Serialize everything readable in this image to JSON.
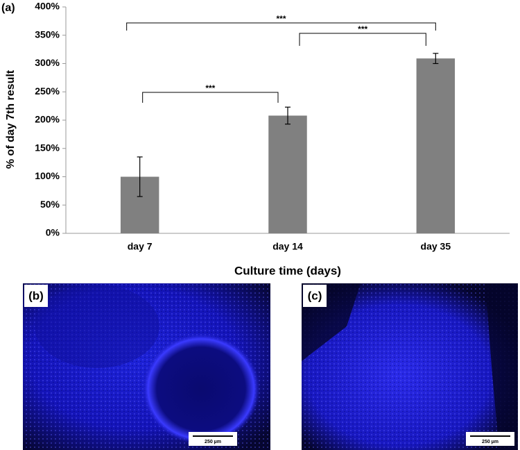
{
  "chart_data": {
    "type": "bar",
    "panel_label": "(a)",
    "categories": [
      "day 7",
      "day 14",
      "day 35"
    ],
    "values": [
      100,
      208,
      309
    ],
    "errors": [
      35,
      15,
      9
    ],
    "color": "#808080",
    "ylim": [
      0,
      400
    ],
    "yticks": [
      {
        "value": 0,
        "label": "0%"
      },
      {
        "value": 50,
        "label": "50%"
      },
      {
        "value": 100,
        "label": "100%"
      },
      {
        "value": 150,
        "label": "150%"
      },
      {
        "value": 200,
        "label": "200%"
      },
      {
        "value": 250,
        "label": "250%"
      },
      {
        "value": 300,
        "label": "300%"
      },
      {
        "value": 350,
        "label": "350%"
      },
      {
        "value": 400,
        "label": "400%"
      }
    ],
    "ylabel": "% of day 7th result",
    "xlabel": "Culture time (days)",
    "annotations": [
      {
        "from": 0,
        "to": 1,
        "text": "***"
      },
      {
        "from": 1,
        "to": 2,
        "text": "***"
      },
      {
        "from": 0,
        "to": 2,
        "text": "***"
      }
    ]
  },
  "images": [
    {
      "label": "(b)",
      "scale": "250 µm"
    },
    {
      "label": "(c)",
      "scale": "250 µm"
    }
  ]
}
